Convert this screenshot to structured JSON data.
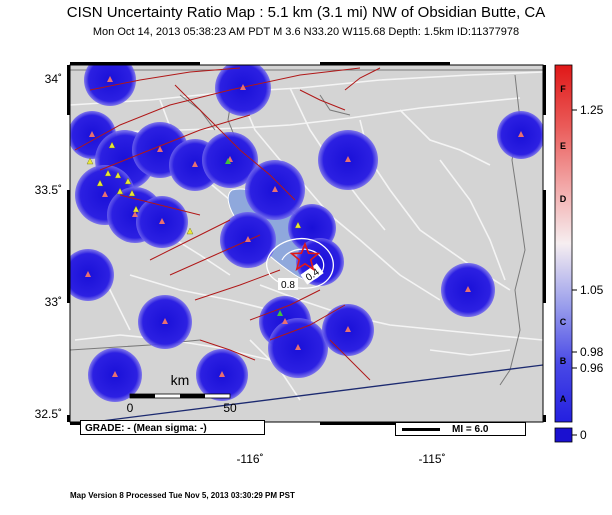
{
  "header": {
    "title": "CISN Uncertainty Ratio Map : 5.1 km (3.1 mi) NW of Obsidian Butte, CA",
    "subtitle": "Mon Oct 14, 2013 05:38:23 AM PDT   M 3.6   N33.20 W115.68   Depth: 1.5km   ID:11377978"
  },
  "map": {
    "lat_labels": [
      "34˚",
      "33.5˚",
      "33˚",
      "32.5˚"
    ],
    "lon_labels": [
      "-116˚",
      "-115˚"
    ],
    "epicenter": {
      "lat": 33.2,
      "lon": -115.68
    },
    "contour_labels": [
      "0.8",
      "0.4"
    ],
    "scale_bar": {
      "unit": "km",
      "ticks": [
        "0",
        "50"
      ]
    },
    "grade_text": "GRADE: - (Mean sigma: -)",
    "mi_text": "MI = 6.0"
  },
  "colorbar": {
    "letters": [
      "F",
      "E",
      "D",
      "C",
      "B",
      "A"
    ],
    "values": [
      "1.25",
      "1.05",
      "0.98",
      "0.96"
    ],
    "zero_label": "0"
  },
  "footer": {
    "text": "Map Version 8 Processed Tue Nov  5, 2013 03:30:29 PM PST"
  }
}
